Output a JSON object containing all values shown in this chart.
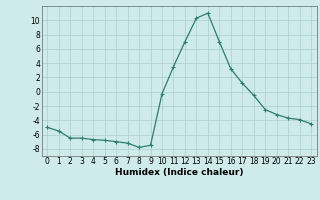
{
  "x": [
    0,
    1,
    2,
    3,
    4,
    5,
    6,
    7,
    8,
    9,
    10,
    11,
    12,
    13,
    14,
    15,
    16,
    17,
    18,
    19,
    20,
    21,
    22,
    23
  ],
  "y": [
    -5.0,
    -5.5,
    -6.5,
    -6.5,
    -6.7,
    -6.8,
    -7.0,
    -7.2,
    -7.8,
    -7.5,
    -0.3,
    3.5,
    7.0,
    10.3,
    11.0,
    7.0,
    3.2,
    1.2,
    -0.5,
    -2.5,
    -3.2,
    -3.7,
    -3.9,
    -4.5
  ],
  "line_color": "#2d7d6e",
  "marker": "+",
  "marker_size": 3,
  "bg_color": "#ceeaea",
  "grid_color": "#aacece",
  "xlabel": "Humidex (Indice chaleur)",
  "xlim": [
    -0.5,
    23.5
  ],
  "ylim": [
    -9,
    12
  ],
  "yticks": [
    -8,
    -6,
    -4,
    -2,
    0,
    2,
    4,
    6,
    8,
    10
  ],
  "xticks": [
    0,
    1,
    2,
    3,
    4,
    5,
    6,
    7,
    8,
    9,
    10,
    11,
    12,
    13,
    14,
    15,
    16,
    17,
    18,
    19,
    20,
    21,
    22,
    23
  ],
  "tick_fontsize": 5.5,
  "label_fontsize": 6.5
}
